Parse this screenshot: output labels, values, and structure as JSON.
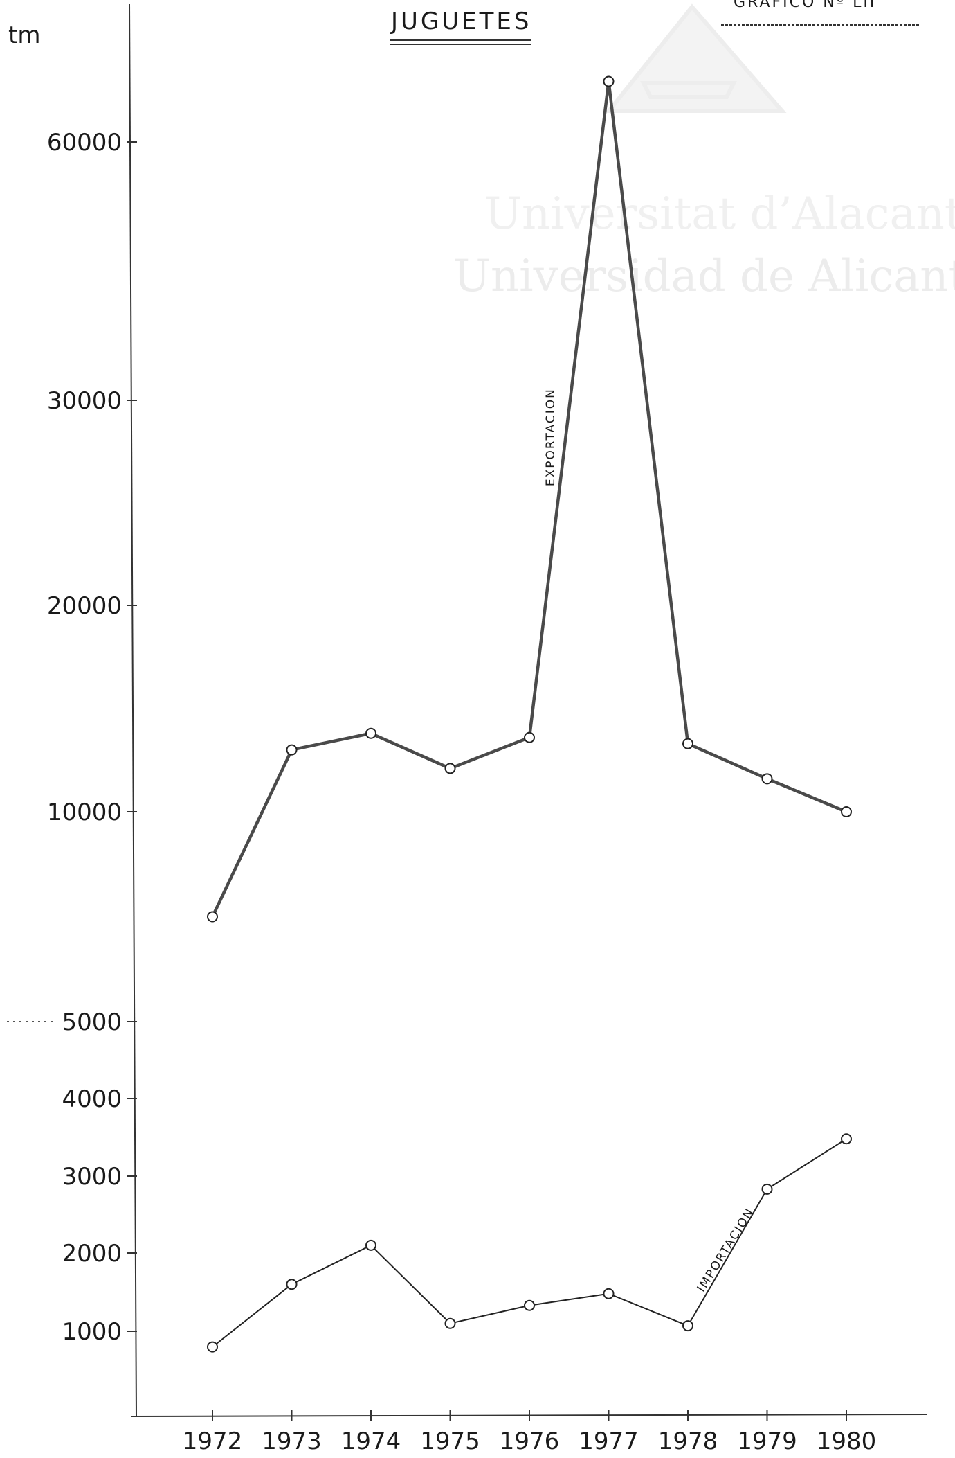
{
  "header": {
    "title": "JUGUETES",
    "figure_ref": "GRAFICO Nº LII",
    "unit": "tm"
  },
  "watermark": {
    "line1": "Universitat d’Alacant",
    "line2": "Universidad de Alicante"
  },
  "chart_data": {
    "type": "line",
    "title": "JUGUETES",
    "ylabel": "tm",
    "xlabel": "",
    "x": [
      "1972",
      "1973",
      "1974",
      "1975",
      "1976",
      "1977",
      "1978",
      "1979",
      "1980"
    ],
    "y_ticks_upper": [
      {
        "label": "10000",
        "value": 10000
      },
      {
        "label": "20000",
        "value": 20000
      },
      {
        "label": "30000",
        "value": 30000
      },
      {
        "label": "60000",
        "value": 60000
      }
    ],
    "y_ticks_lower": [
      {
        "label": "1000",
        "value": 1000
      },
      {
        "label": "2000",
        "value": 2000
      },
      {
        "label": "3000",
        "value": 3000
      },
      {
        "label": "4000",
        "value": 4000
      },
      {
        "label": "5000",
        "value": 5000
      }
    ],
    "axis_note": "broken axis: 1000-5000 linear step; 10000-30000 linear; 30000-60000 compressed",
    "series": [
      {
        "name": "EXPORTACION",
        "values": [
          7500,
          13000,
          13800,
          12100,
          13600,
          67000,
          13300,
          11600,
          10000
        ]
      },
      {
        "name": "IMPORTACION",
        "values": [
          800,
          1600,
          2100,
          1100,
          1330,
          1480,
          1070,
          2830,
          3480
        ]
      }
    ],
    "grid": false,
    "legend": "inline labels along lines"
  }
}
